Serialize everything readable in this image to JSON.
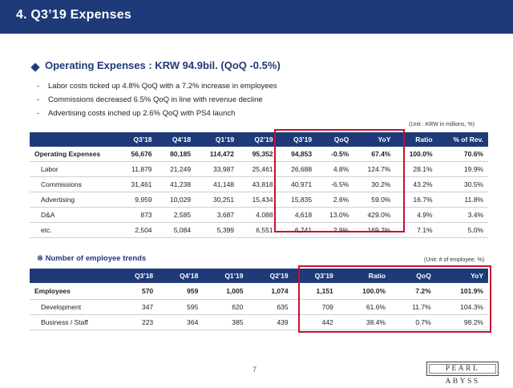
{
  "header": {
    "title": "4. Q3’19 Expenses"
  },
  "section": {
    "title": "Operating Expenses : KRW 94.9bil. (QoQ -0.5%)"
  },
  "bullets": [
    "Labor costs ticked up 4.8% QoQ with a 7.2% increase in employees",
    "Commissions decreased 6.5% QoQ in line with revenue decline",
    "Advertising costs inched up 2.6% QoQ with PS4 launch"
  ],
  "opex": {
    "unit": "(Unit : KRW in millions, %)",
    "headers": [
      "",
      "Q3’18",
      "Q4’18",
      "Q1’19",
      "Q2’19",
      "Q3’19",
      "QoQ",
      "YoY",
      "Ratio",
      "% of Rev."
    ],
    "rows": [
      [
        "Operating Expenses",
        "56,676",
        "80,185",
        "114,472",
        "95,352",
        "94,853",
        "-0.5%",
        "67.4%",
        "100.0%",
        "70.6%"
      ],
      [
        "Labor",
        "11,879",
        "21,249",
        "33,987",
        "25,461",
        "26,688",
        "4.8%",
        "124.7%",
        "28.1%",
        "19.9%"
      ],
      [
        "Commissions",
        "31,461",
        "41,238",
        "41,148",
        "43,818",
        "40,971",
        "-6.5%",
        "30.2%",
        "43.2%",
        "30.5%"
      ],
      [
        "Advertising",
        "9,959",
        "10,029",
        "30,251",
        "15,434",
        "15,835",
        "2.6%",
        "59.0%",
        "16.7%",
        "11.8%"
      ],
      [
        "D&A",
        "873",
        "2,585",
        "3,687",
        "4,088",
        "4,618",
        "13.0%",
        "429.0%",
        "4.9%",
        "3.4%"
      ],
      [
        "etc.",
        "2,504",
        "5,084",
        "5,399",
        "6,551",
        "6,741",
        "2.9%",
        "169.2%",
        "7.1%",
        "5.0%"
      ]
    ]
  },
  "employees": {
    "title": "※ Number of employee trends",
    "unit": "(Unit: # of employee, %)",
    "headers": [
      "",
      "Q3’18",
      "Q4’18",
      "Q1’19",
      "Q2’19",
      "Q3’19",
      "Ratio",
      "QoQ",
      "YoY"
    ],
    "rows": [
      [
        "Employees",
        "570",
        "959",
        "1,005",
        "1,074",
        "1,151",
        "100.0%",
        "7.2%",
        "101.9%"
      ],
      [
        "Development",
        "347",
        "595",
        "620",
        "635",
        "709",
        "61.6%",
        "11.7%",
        "104.3%"
      ],
      [
        "Business / Staff",
        "223",
        "364",
        "385",
        "439",
        "442",
        "38.4%",
        "0.7%",
        "98.2%"
      ]
    ]
  },
  "footer": {
    "page": "7",
    "logo": "PEARL ABYSS"
  },
  "colors": {
    "header_bg": "#1f3a78",
    "highlight": "#c8102e"
  }
}
